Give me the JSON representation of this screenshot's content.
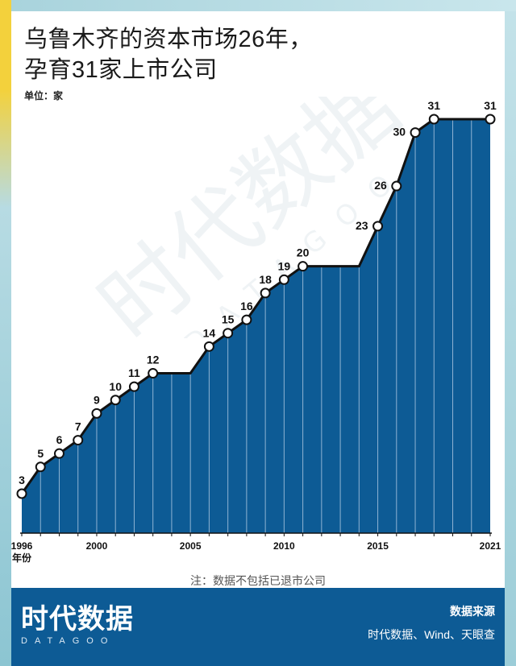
{
  "header": {
    "title_line1": "乌鲁木齐的资本市场26年，",
    "title_line2": "孕育31家上市公司",
    "unit": "单位：家"
  },
  "watermark": {
    "text": "时代数据",
    "sub": "DATAGOO"
  },
  "note": "注：数据不包括已退市公司",
  "footer": {
    "brand": "时代数据",
    "brand_sub": "DATAGOO",
    "source_title": "数据来源",
    "source_text": "时代数据、Wind、天眼查"
  },
  "colors": {
    "area_fill": "#0d5b95",
    "line": "#111111",
    "grid": "#8fb3d3",
    "footer_bg": "#0d5b95"
  },
  "chart_data": {
    "type": "area",
    "title": "乌鲁木齐的资本市场26年，孕育31家上市公司",
    "ylabel": "单位：家",
    "xlabel": "年份",
    "x": [
      1996,
      1997,
      1998,
      1999,
      2000,
      2001,
      2002,
      2003,
      2004,
      2005,
      2006,
      2007,
      2008,
      2009,
      2010,
      2011,
      2012,
      2013,
      2014,
      2015,
      2016,
      2017,
      2018,
      2019,
      2020,
      2021
    ],
    "values": [
      3,
      5,
      6,
      7,
      9,
      10,
      11,
      12,
      12,
      12,
      14,
      15,
      16,
      18,
      19,
      20,
      20,
      20,
      20,
      23,
      26,
      30,
      31,
      31,
      31,
      31
    ],
    "labeled_points": [
      {
        "x": 1996,
        "label": "3"
      },
      {
        "x": 1997,
        "label": "5"
      },
      {
        "x": 1998,
        "label": "6"
      },
      {
        "x": 1999,
        "label": "7"
      },
      {
        "x": 2000,
        "label": "9"
      },
      {
        "x": 2001,
        "label": "10"
      },
      {
        "x": 2002,
        "label": "11"
      },
      {
        "x": 2003,
        "label": "12"
      },
      {
        "x": 2006,
        "label": "14"
      },
      {
        "x": 2007,
        "label": "15"
      },
      {
        "x": 2008,
        "label": "16"
      },
      {
        "x": 2009,
        "label": "18"
      },
      {
        "x": 2010,
        "label": "19"
      },
      {
        "x": 2011,
        "label": "20"
      },
      {
        "x": 2015,
        "label": "23"
      },
      {
        "x": 2016,
        "label": "26"
      },
      {
        "x": 2017,
        "label": "30"
      },
      {
        "x": 2018,
        "label": "31"
      },
      {
        "x": 2021,
        "label": "31"
      }
    ],
    "x_ticks": [
      {
        "x": 1996,
        "label": "1996"
      },
      {
        "x": 2000,
        "label": "2000"
      },
      {
        "x": 2005,
        "label": "2005"
      },
      {
        "x": 2010,
        "label": "2010"
      },
      {
        "x": 2015,
        "label": "2015"
      },
      {
        "x": 2021,
        "label": "2021"
      }
    ],
    "x_axis_unit": "年份",
    "xlim": [
      1996,
      2021
    ],
    "ylim": [
      0,
      31
    ],
    "grid": "vertical lines at each year",
    "legend": "none"
  }
}
